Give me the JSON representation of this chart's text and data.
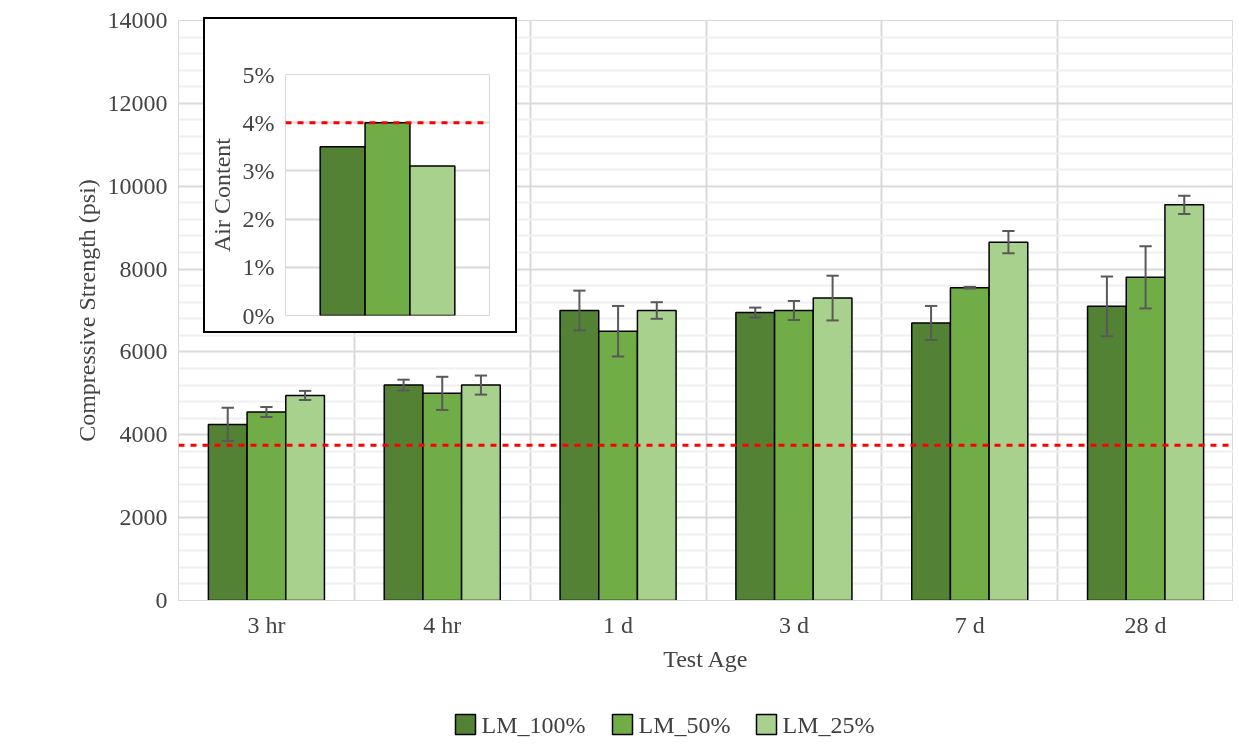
{
  "chart_data": [
    {
      "type": "bar",
      "xlabel": "Test Age",
      "ylabel": "Compressive Strength (psi)",
      "categories": [
        "3 hr",
        "4 hr",
        "1 d",
        "3 d",
        "7 d",
        "28 d"
      ],
      "series": [
        {
          "name": "LM_100%",
          "color": "#548235",
          "values": [
            4250,
            5200,
            7000,
            6950,
            6700,
            7100
          ],
          "errors": [
            400,
            130,
            480,
            120,
            410,
            720
          ]
        },
        {
          "name": "LM_50%",
          "color": "#70ad47",
          "values": [
            4550,
            5000,
            6500,
            7000,
            7550,
            7800
          ],
          "errors": [
            120,
            400,
            610,
            230,
            20,
            750
          ]
        },
        {
          "name": "LM_25%",
          "color": "#a9d18e",
          "values": [
            4950,
            5200,
            7000,
            7300,
            8650,
            9550
          ],
          "errors": [
            110,
            230,
            200,
            540,
            270,
            220
          ]
        }
      ],
      "ylim": [
        0,
        14000
      ],
      "yticks": [
        0,
        2000,
        4000,
        6000,
        8000,
        10000,
        12000,
        14000
      ],
      "ref_lines": [
        {
          "axis": "y",
          "value": 3750,
          "color": "#ff0000",
          "line_style": "dashed"
        }
      ],
      "grid": true,
      "legend": "bottom"
    },
    {
      "type": "bar",
      "ylabel": "Air Content",
      "categories": [
        null,
        null,
        null
      ],
      "values": [
        3.5,
        4.0,
        3.1
      ],
      "colors": [
        "#548235",
        "#70ad47",
        "#a9d18e"
      ],
      "ylim": [
        0,
        5
      ],
      "yticks": [
        {
          "value": 0,
          "label": "0%"
        },
        {
          "value": 1,
          "label": "1%"
        },
        {
          "value": 2,
          "label": "2%"
        },
        {
          "value": 3,
          "label": "3%"
        },
        {
          "value": 4,
          "label": "4%"
        },
        {
          "value": 5,
          "label": "5%"
        }
      ],
      "ref_lines": [
        {
          "axis": "y",
          "value": 4,
          "color": "#ff0000",
          "line_style": "dashed"
        }
      ],
      "grid": "y",
      "tick_labels": "y"
    }
  ]
}
